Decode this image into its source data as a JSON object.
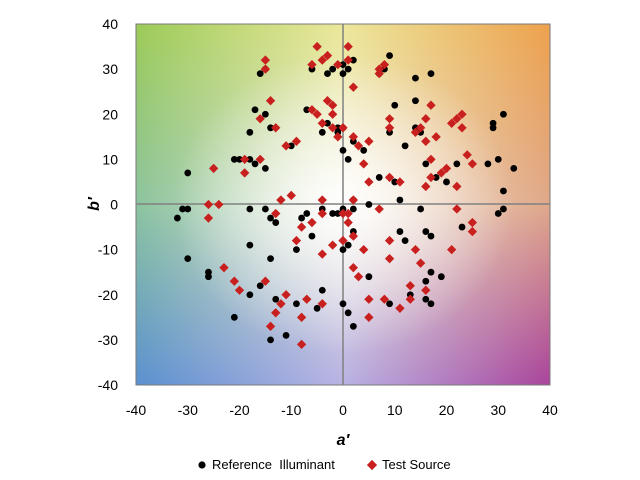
{
  "chart_data": {
    "type": "scatter",
    "title": "",
    "xlabel": "a′",
    "ylabel": "b′",
    "xlim": [
      -40,
      40
    ],
    "ylim": [
      -40,
      40
    ],
    "xticks": [
      -40,
      -30,
      -20,
      -10,
      0,
      10,
      20,
      30,
      40
    ],
    "yticks": [
      -40,
      -30,
      -20,
      -10,
      0,
      10,
      20,
      30,
      40
    ],
    "grid": false,
    "background": "a′–b′ color-space gradient (green top-left, orange top-right, blue bottom-left, purple bottom-right, white center)",
    "legend_position": "bottom",
    "series": [
      {
        "name": "Reference  Illuminant",
        "marker": "circle",
        "color": "#000000",
        "points": [
          [
            -16,
            29
          ],
          [
            -15,
            30
          ],
          [
            -17,
            21
          ],
          [
            -15,
            20
          ],
          [
            -14,
            17
          ],
          [
            -18,
            16
          ],
          [
            -20,
            10
          ],
          [
            -18,
            10
          ],
          [
            -17,
            9
          ],
          [
            -15,
            8
          ],
          [
            -10,
            13
          ],
          [
            -7,
            21
          ],
          [
            -6,
            30
          ],
          [
            -3,
            29
          ],
          [
            -2,
            30
          ],
          [
            0,
            31
          ],
          [
            0,
            29
          ],
          [
            1,
            30
          ],
          [
            2,
            32
          ],
          [
            -3,
            18
          ],
          [
            -1,
            17
          ],
          [
            -4,
            16
          ],
          [
            0,
            17
          ],
          [
            -1,
            16
          ],
          [
            2,
            14
          ],
          [
            0,
            12
          ],
          [
            1,
            10
          ],
          [
            4,
            12
          ],
          [
            7,
            29
          ],
          [
            9,
            33
          ],
          [
            8,
            30
          ],
          [
            10,
            22
          ],
          [
            9,
            16
          ],
          [
            12,
            13
          ],
          [
            14,
            28
          ],
          [
            17,
            29
          ],
          [
            14,
            23
          ],
          [
            14,
            17
          ],
          [
            15,
            16
          ],
          [
            16,
            9
          ],
          [
            18,
            6
          ],
          [
            20,
            5
          ],
          [
            22,
            9
          ],
          [
            28,
            9
          ],
          [
            30,
            10
          ],
          [
            33,
            8
          ],
          [
            29,
            18
          ],
          [
            31,
            20
          ],
          [
            29,
            17
          ],
          [
            -30,
            7
          ],
          [
            -31,
            -1
          ],
          [
            -32,
            -3
          ],
          [
            -30,
            -1
          ],
          [
            -21,
            10
          ],
          [
            -18,
            -1
          ],
          [
            -14,
            -3
          ],
          [
            -15,
            -1
          ],
          [
            -13,
            -4
          ],
          [
            -8,
            -3
          ],
          [
            -7,
            -2
          ],
          [
            -6,
            -7
          ],
          [
            -9,
            -10
          ],
          [
            -4,
            -1
          ],
          [
            -2,
            -2
          ],
          [
            -1,
            -2
          ],
          [
            0,
            -1
          ],
          [
            2,
            1
          ],
          [
            2,
            -1
          ],
          [
            2,
            -7
          ],
          [
            1,
            -9
          ],
          [
            0,
            -10
          ],
          [
            5,
            0
          ],
          [
            7,
            6
          ],
          [
            10,
            5
          ],
          [
            11,
            1
          ],
          [
            15,
            -1
          ],
          [
            16,
            -6
          ],
          [
            17,
            -7
          ],
          [
            23,
            -5
          ],
          [
            30,
            -2
          ],
          [
            31,
            -1
          ],
          [
            31,
            3
          ],
          [
            -30,
            -12
          ],
          [
            -26,
            -16
          ],
          [
            -26,
            -15
          ],
          [
            -18,
            -9
          ],
          [
            -14,
            -12
          ],
          [
            -16,
            -18
          ],
          [
            -18,
            -20
          ],
          [
            -21,
            -25
          ],
          [
            -13,
            -21
          ],
          [
            -11,
            -29
          ],
          [
            -14,
            -30
          ],
          [
            -9,
            -22
          ],
          [
            -5,
            -23
          ],
          [
            -4,
            -19
          ],
          [
            0,
            -22
          ],
          [
            1,
            -24
          ],
          [
            2,
            -27
          ],
          [
            2,
            -6
          ],
          [
            5,
            -16
          ],
          [
            9,
            -22
          ],
          [
            11,
            -6
          ],
          [
            12,
            -8
          ],
          [
            13,
            -20
          ],
          [
            16,
            -17
          ],
          [
            17,
            -15
          ],
          [
            19,
            -16
          ],
          [
            16,
            -21
          ],
          [
            17,
            -22
          ]
        ]
      },
      {
        "name": "Test Source",
        "marker": "diamond",
        "color": "#c8201e",
        "points": [
          [
            -15,
            32
          ],
          [
            -15,
            30
          ],
          [
            -16,
            19
          ],
          [
            -14,
            23
          ],
          [
            -13,
            17
          ],
          [
            -11,
            13
          ],
          [
            -9,
            14
          ],
          [
            -6,
            21
          ],
          [
            -5,
            20
          ],
          [
            -6,
            31
          ],
          [
            -5,
            35
          ],
          [
            -3,
            33
          ],
          [
            -4,
            32
          ],
          [
            -1,
            31
          ],
          [
            1,
            35
          ],
          [
            1,
            32
          ],
          [
            2,
            26
          ],
          [
            -4,
            18
          ],
          [
            -3,
            23
          ],
          [
            -2,
            22
          ],
          [
            -2,
            20
          ],
          [
            0,
            17
          ],
          [
            -1,
            15
          ],
          [
            -2,
            17
          ],
          [
            2,
            15
          ],
          [
            5,
            14
          ],
          [
            3,
            13
          ],
          [
            4,
            9
          ],
          [
            7,
            29
          ],
          [
            7,
            30
          ],
          [
            8,
            31
          ],
          [
            9,
            17
          ],
          [
            9,
            19
          ],
          [
            16,
            19
          ],
          [
            17,
            22
          ],
          [
            15,
            17
          ],
          [
            14,
            16
          ],
          [
            16,
            14
          ],
          [
            17,
            10
          ],
          [
            18,
            15
          ],
          [
            20,
            8
          ],
          [
            21,
            18
          ],
          [
            22,
            19
          ],
          [
            23,
            20
          ],
          [
            23,
            17
          ],
          [
            25,
            9
          ],
          [
            24,
            11
          ],
          [
            -25,
            8
          ],
          [
            -26,
            0
          ],
          [
            -26,
            -3
          ],
          [
            -24,
            0
          ],
          [
            -19,
            10
          ],
          [
            -16,
            10
          ],
          [
            -19,
            7
          ],
          [
            -12,
            1
          ],
          [
            -13,
            -2
          ],
          [
            -10,
            2
          ],
          [
            -8,
            -5
          ],
          [
            -9,
            -8
          ],
          [
            -6,
            -4
          ],
          [
            -4,
            1
          ],
          [
            -4,
            -2
          ],
          [
            0,
            -2
          ],
          [
            1,
            -2
          ],
          [
            2,
            1
          ],
          [
            1,
            -4
          ],
          [
            0,
            -8
          ],
          [
            2,
            -7
          ],
          [
            4,
            -10
          ],
          [
            5,
            5
          ],
          [
            7,
            -1
          ],
          [
            9,
            6
          ],
          [
            11,
            5
          ],
          [
            16,
            4
          ],
          [
            17,
            6
          ],
          [
            19,
            7
          ],
          [
            22,
            -1
          ],
          [
            22,
            4
          ],
          [
            25,
            -4
          ],
          [
            25,
            -6
          ],
          [
            21,
            -10
          ],
          [
            -23,
            -14
          ],
          [
            -21,
            -17
          ],
          [
            -20,
            -19
          ],
          [
            -15,
            -17
          ],
          [
            -13,
            -24
          ],
          [
            -14,
            -27
          ],
          [
            -12,
            -22
          ],
          [
            -11,
            -20
          ],
          [
            -8,
            -25
          ],
          [
            -8,
            -31
          ],
          [
            -7,
            -21
          ],
          [
            -4,
            -11
          ],
          [
            -4,
            -22
          ],
          [
            -2,
            -9
          ],
          [
            2,
            -14
          ],
          [
            3,
            -16
          ],
          [
            5,
            -21
          ],
          [
            5,
            -25
          ],
          [
            8,
            -21
          ],
          [
            9,
            -12
          ],
          [
            9,
            -8
          ],
          [
            11,
            -23
          ],
          [
            13,
            -18
          ],
          [
            13,
            -21
          ],
          [
            15,
            -13
          ],
          [
            16,
            -19
          ],
          [
            14,
            -10
          ]
        ]
      }
    ]
  },
  "legend": {
    "items": [
      {
        "label": "Reference  Illuminant",
        "marker": "circle",
        "color": "#000000"
      },
      {
        "label": "Test Source",
        "marker": "diamond",
        "color": "#c8201e"
      }
    ]
  }
}
